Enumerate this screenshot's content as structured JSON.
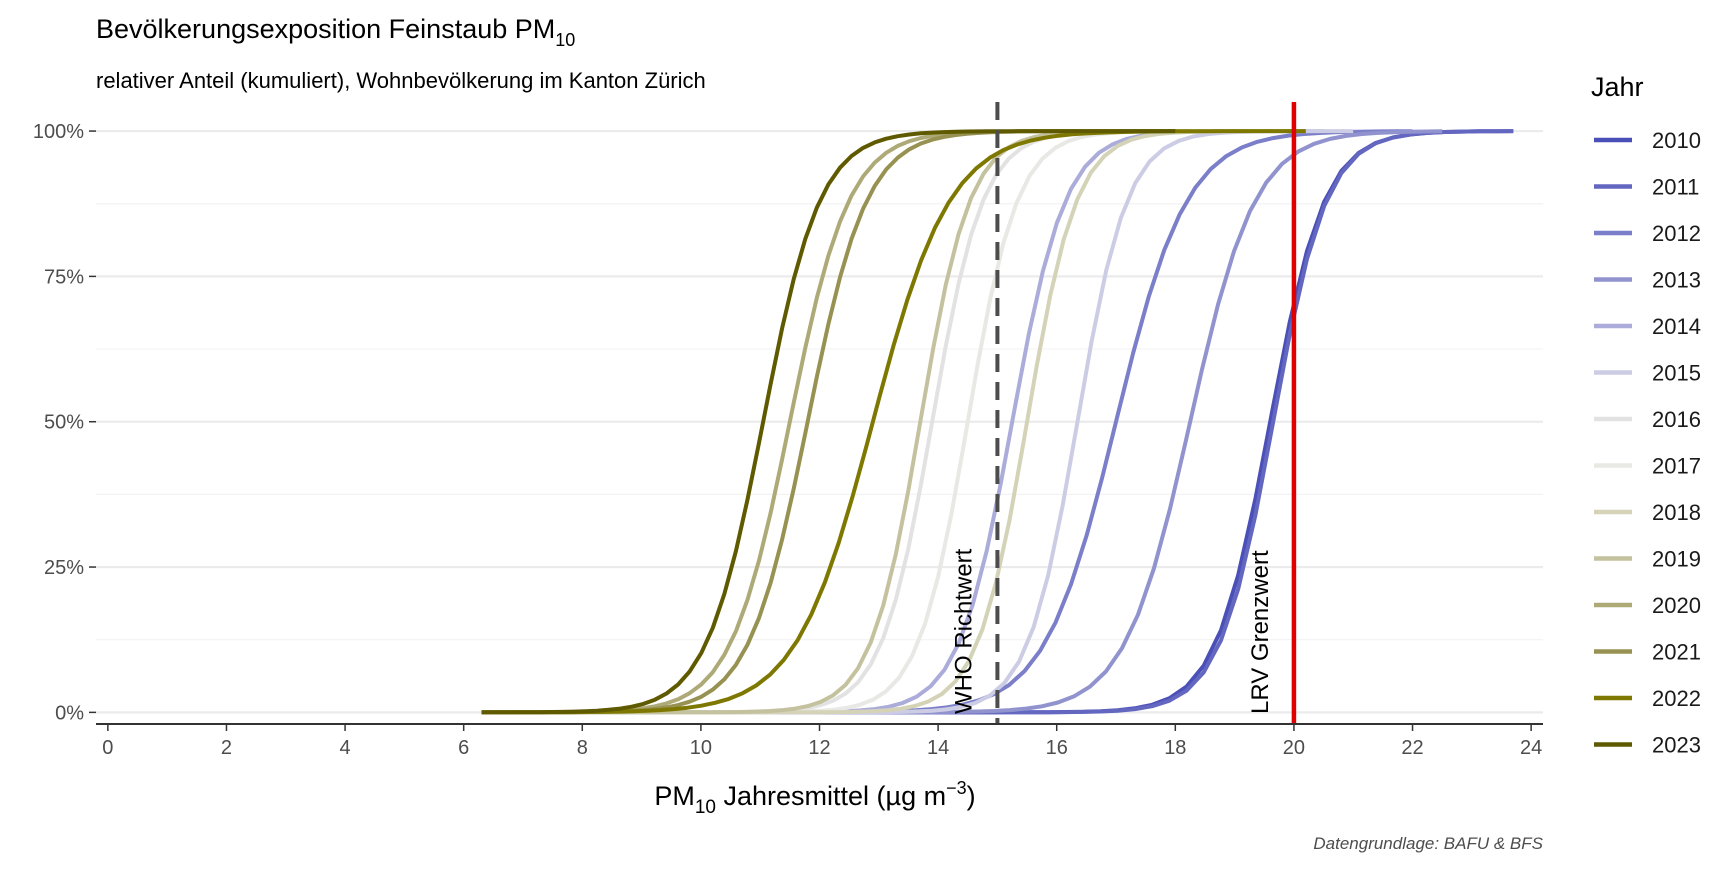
{
  "chart_data": {
    "type": "line",
    "title": {
      "main": "Bevölkerungsexposition Feinstaub PM",
      "sub": "10"
    },
    "subtitle": "relativer Anteil (kumuliert), Wohnbevölkerung im Kanton Zürich",
    "xlabel": {
      "pre": "PM",
      "sub": "10",
      "mid": " Jahresmittel (µg m",
      "sup": "−3",
      "post": ")"
    },
    "ylabel": "",
    "caption": "Datengrundlage: BAFU & BFS",
    "xlim": [
      -0.2,
      24.2
    ],
    "ylim": [
      -0.02,
      1.05
    ],
    "x_ticks": [
      0,
      2,
      4,
      6,
      8,
      10,
      12,
      14,
      16,
      18,
      20,
      22,
      24
    ],
    "y_ticks": [
      0,
      0.25,
      0.5,
      0.75,
      1.0
    ],
    "y_tick_labels": [
      "0%",
      "25%",
      "50%",
      "75%",
      "100%"
    ],
    "grid": true,
    "legend": {
      "title": "Jahr",
      "position": "right"
    },
    "reference_lines": [
      {
        "label": "WHO Richtwert",
        "x": 15,
        "color": "#4d4d4d",
        "style": "dashed"
      },
      {
        "label": "LRV Grenzwert",
        "x": 20,
        "color": "#e00000",
        "style": "solid"
      }
    ],
    "series": [
      {
        "name": "2010",
        "color": "#4b4fb8",
        "center": 19.6,
        "scale": 0.46,
        "xmin": 6.3,
        "xmax": 23.7
      },
      {
        "name": "2011",
        "color": "#6367c0",
        "center": 19.65,
        "scale": 0.45,
        "xmin": 6.3,
        "xmax": 23.7
      },
      {
        "name": "2012",
        "color": "#7b7ec9",
        "center": 17.0,
        "scale": 0.6,
        "xmin": 6.3,
        "xmax": 22.0
      },
      {
        "name": "2013",
        "color": "#9193cf",
        "center": 18.25,
        "scale": 0.55,
        "xmin": 6.3,
        "xmax": 22.5
      },
      {
        "name": "2014",
        "color": "#abacda",
        "center": 15.25,
        "scale": 0.45,
        "xmin": 6.3,
        "xmax": 20.5
      },
      {
        "name": "2015",
        "color": "#cccde5",
        "center": 16.35,
        "scale": 0.42,
        "xmin": 6.3,
        "xmax": 21.0
      },
      {
        "name": "2016",
        "color": "#e2e2e2",
        "center": 13.9,
        "scale": 0.43,
        "xmin": 6.3,
        "xmax": 19.0
      },
      {
        "name": "2017",
        "color": "#e8e8e4",
        "center": 14.5,
        "scale": 0.42,
        "xmin": 6.3,
        "xmax": 19.5
      },
      {
        "name": "2018",
        "color": "#d4d3b8",
        "center": 15.5,
        "scale": 0.42,
        "xmin": 6.3,
        "xmax": 20.0
      },
      {
        "name": "2019",
        "color": "#c4c29e",
        "center": 13.7,
        "scale": 0.42,
        "xmin": 6.3,
        "xmax": 19.0
      },
      {
        "name": "2020",
        "color": "#aeaa78",
        "center": 11.5,
        "scale": 0.5,
        "xmin": 6.3,
        "xmax": 18.0
      },
      {
        "name": "2021",
        "color": "#979252",
        "center": 11.8,
        "scale": 0.5,
        "xmin": 6.3,
        "xmax": 18.0
      },
      {
        "name": "2022",
        "color": "#7e7800",
        "center": 12.9,
        "scale": 0.65,
        "xmin": 6.3,
        "xmax": 20.2
      },
      {
        "name": "2023",
        "color": "#5f5a00",
        "center": 11.05,
        "scale": 0.48,
        "xmin": 6.3,
        "xmax": 18.0
      }
    ]
  }
}
